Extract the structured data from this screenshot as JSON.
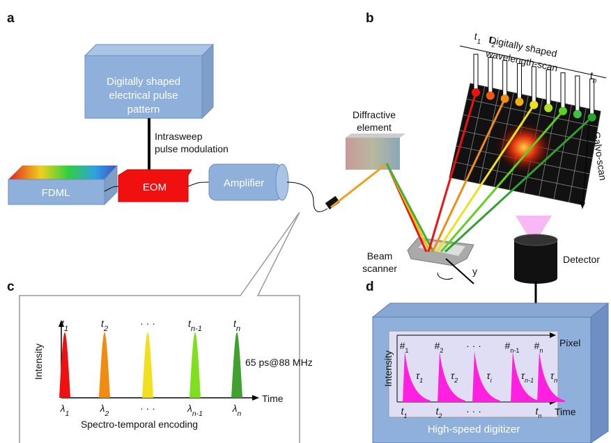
{
  "panels": [
    "a",
    "b",
    "c",
    "d"
  ],
  "panel_a": {
    "pulse_pattern": [
      "Digitally shaped",
      "electrical pulse",
      "pattern"
    ],
    "modulation": [
      "Intrasweep",
      "pulse modulation"
    ],
    "fdml": "FDML",
    "eom": "EOM",
    "amplifier": "Amplifier"
  },
  "panel_b": {
    "wavelength_scan": [
      "Digitally shaped",
      "wavelength-scan"
    ],
    "pulse_labels": [
      {
        "base": "t",
        "sub": "1"
      },
      {
        "base": "t",
        "sub": "2"
      },
      {
        "base": "· · ·"
      },
      {
        "base": "t",
        "sub": "n"
      }
    ],
    "galvo": "Galvo-scan",
    "diffractive": [
      "Diffractive",
      "element"
    ],
    "scanner": [
      "Beam",
      "scanner"
    ],
    "axis": "y",
    "detector": "Detector"
  },
  "panel_c": {
    "peak_labels": [
      {
        "base": "t",
        "sub": "1"
      },
      {
        "base": "t",
        "sub": "2"
      },
      {
        "base": "· · ·"
      },
      {
        "base": "t",
        "sub": "n-1"
      },
      {
        "base": "t",
        "sub": "n"
      }
    ],
    "wavelength_labels": [
      {
        "base": "λ",
        "sub": "1"
      },
      {
        "base": "λ",
        "sub": "2"
      },
      {
        "base": "· · ·"
      },
      {
        "base": "λ",
        "sub": "n-1"
      },
      {
        "base": "λ",
        "sub": "n"
      }
    ],
    "y_axis": "Intensity",
    "x_axis": "Time",
    "rate": "65 ps@88 MHz",
    "caption": "Spectro-temporal encoding"
  },
  "panel_d": {
    "pixel_labels": [
      {
        "base": "#",
        "sub": "1"
      },
      {
        "base": "#",
        "sub": "2"
      },
      {
        "base": "· · ·"
      },
      {
        "base": "#",
        "sub": "n-1"
      },
      {
        "base": "#",
        "sub": "n"
      }
    ],
    "lifetime_labels": [
      {
        "base": "τ",
        "sub": "1"
      },
      {
        "base": "τ",
        "sub": "2"
      },
      {
        "base": "τ",
        "sub": "i"
      },
      {
        "base": "τ",
        "sub": "n-1"
      },
      {
        "base": "τ",
        "sub": "n"
      }
    ],
    "time_labels": [
      {
        "base": "t",
        "sub": "1"
      },
      {
        "base": "t",
        "sub": "2"
      },
      {
        "base": "· · ·"
      },
      {
        "base": "t",
        "sub": "n"
      }
    ],
    "y_axis": "Intensity",
    "x_top": "Pixel",
    "x_axis": "Time",
    "digitizer": "High-speed digitizer"
  }
}
